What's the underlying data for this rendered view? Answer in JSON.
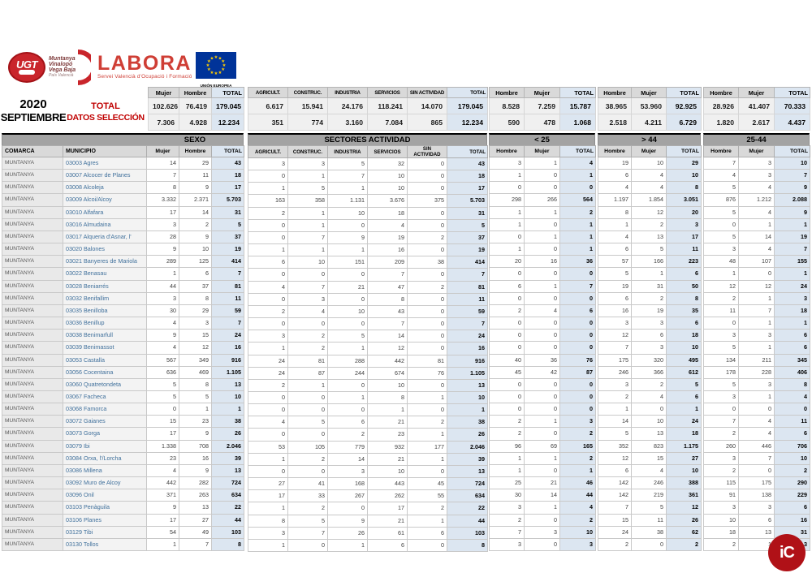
{
  "period": {
    "year": "2020",
    "month": "SEPTIEMBRE"
  },
  "selection": {
    "line1": "TOTAL",
    "line2": "DATOS SELECCIÓN"
  },
  "logos": {
    "ugt": {
      "acronym": "UGT",
      "region_lines": [
        "Muntanya",
        "Vinalopó",
        "Vega Baja"
      ],
      "sub": "País Valencià"
    },
    "labora": {
      "name": "LABORA",
      "subtitle": "Servei Valencià d'Ocupació i Formació"
    },
    "eu": {
      "line1": "UNIÓN EUROPEA",
      "line2": "Fondo Social Europeo"
    },
    "corner": {
      "text": "iC"
    }
  },
  "colors": {
    "accent_red": "#c00000",
    "labora_red": "#cf3e35",
    "eu_blue": "#003399",
    "eu_star_yellow": "#ffcc00",
    "band_gray": "#a3a3a3",
    "header_gray": "#d9d9d9",
    "total_col_blue": "#dce6f1",
    "municipio_blue": "#41719c",
    "corner_red": "#b01117"
  },
  "summary": {
    "sexo": {
      "headers": [
        "Mujer",
        "Hombre",
        "TOTAL"
      ],
      "rows": [
        [
          "102.626",
          "76.419",
          "179.045"
        ],
        [
          "7.306",
          "4.928",
          "12.234"
        ]
      ]
    },
    "sectores": {
      "headers": [
        "AGRICULT.",
        "CONSTRUC.",
        "INDUSTRIA",
        "SERVICIOS",
        "SIN ACTIVIDAD",
        "TOTAL"
      ],
      "rows": [
        [
          "6.617",
          "15.941",
          "24.176",
          "118.241",
          "14.070",
          "179.045"
        ],
        [
          "351",
          "774",
          "3.160",
          "7.084",
          "865",
          "12.234"
        ]
      ]
    },
    "age_groups": [
      {
        "headers": [
          "Hombre",
          "Mujer",
          "TOTAL"
        ],
        "rows": [
          [
            "8.528",
            "7.259",
            "15.787"
          ],
          [
            "590",
            "478",
            "1.068"
          ]
        ]
      },
      {
        "headers": [
          "Hombre",
          "Mujer",
          "TOTAL"
        ],
        "rows": [
          [
            "38.965",
            "53.960",
            "92.925"
          ],
          [
            "2.518",
            "4.211",
            "6.729"
          ]
        ]
      },
      {
        "headers": [
          "Hombre",
          "Mujer",
          "TOTAL"
        ],
        "rows": [
          [
            "28.926",
            "41.407",
            "70.333"
          ],
          [
            "1.820",
            "2.617",
            "4.437"
          ]
        ]
      }
    ]
  },
  "table": {
    "band": {
      "left": "SEXO",
      "sectores": "SECTORES ACTIVIDAD",
      "age": [
        "< 25",
        "> 44",
        "25-44"
      ]
    },
    "headers": {
      "comarca": "COMARCA",
      "municipio": "MUNICIPIO",
      "sexo": [
        "Mujer",
        "Hombre",
        "TOTAL"
      ],
      "sectores": [
        "AGRICULT.",
        "CONSTRUC.",
        "INDUSTRIA",
        "SERVICIOS",
        "SIN ACTIVIDAD",
        "TOTAL"
      ],
      "lt25": [
        "Hombre",
        "Mujer",
        "TOTAL"
      ],
      "gt44": [
        "Hombre",
        "Mujer",
        "TOTAL"
      ],
      "mid": [
        "Hombre",
        "Mujer",
        "TOTAL"
      ]
    },
    "rows": [
      {
        "comarca": "MUNTANYA",
        "municipio": "03003 Agres",
        "sexo": [
          "14",
          "29",
          "43"
        ],
        "sectores": [
          "3",
          "3",
          "5",
          "32",
          "0",
          "43"
        ],
        "lt25": [
          "3",
          "1",
          "4"
        ],
        "gt44": [
          "19",
          "10",
          "29"
        ],
        "mid": [
          "7",
          "3",
          "10"
        ]
      },
      {
        "comarca": "MUNTANYA",
        "municipio": "03007 Alcocer de Planes",
        "sexo": [
          "7",
          "11",
          "18"
        ],
        "sectores": [
          "0",
          "1",
          "7",
          "10",
          "0",
          "18"
        ],
        "lt25": [
          "1",
          "0",
          "1"
        ],
        "gt44": [
          "6",
          "4",
          "10"
        ],
        "mid": [
          "4",
          "3",
          "7"
        ]
      },
      {
        "comarca": "MUNTANYA",
        "municipio": "03008 Alcoleja",
        "sexo": [
          "8",
          "9",
          "17"
        ],
        "sectores": [
          "1",
          "5",
          "1",
          "10",
          "0",
          "17"
        ],
        "lt25": [
          "0",
          "0",
          "0"
        ],
        "gt44": [
          "4",
          "4",
          "8"
        ],
        "mid": [
          "5",
          "4",
          "9"
        ]
      },
      {
        "comarca": "MUNTANYA",
        "municipio": "03009 Alcoi/Alcoy",
        "sexo": [
          "3.332",
          "2.371",
          "5.703"
        ],
        "sectores": [
          "163",
          "358",
          "1.131",
          "3.676",
          "375",
          "5.703"
        ],
        "lt25": [
          "298",
          "266",
          "564"
        ],
        "gt44": [
          "1.197",
          "1.854",
          "3.051"
        ],
        "mid": [
          "876",
          "1.212",
          "2.088"
        ]
      },
      {
        "comarca": "MUNTANYA",
        "municipio": "03010 Alfafara",
        "sexo": [
          "17",
          "14",
          "31"
        ],
        "sectores": [
          "2",
          "1",
          "10",
          "18",
          "0",
          "31"
        ],
        "lt25": [
          "1",
          "1",
          "2"
        ],
        "gt44": [
          "8",
          "12",
          "20"
        ],
        "mid": [
          "5",
          "4",
          "9"
        ]
      },
      {
        "comarca": "MUNTANYA",
        "municipio": "03016 Almudaina",
        "sexo": [
          "3",
          "2",
          "5"
        ],
        "sectores": [
          "0",
          "1",
          "0",
          "4",
          "0",
          "5"
        ],
        "lt25": [
          "1",
          "0",
          "1"
        ],
        "gt44": [
          "1",
          "2",
          "3"
        ],
        "mid": [
          "0",
          "1",
          "1"
        ]
      },
      {
        "comarca": "MUNTANYA",
        "municipio": "03017 Alqueria d'Asnar, l'",
        "sexo": [
          "28",
          "9",
          "37"
        ],
        "sectores": [
          "0",
          "7",
          "9",
          "19",
          "2",
          "37"
        ],
        "lt25": [
          "0",
          "1",
          "1"
        ],
        "gt44": [
          "4",
          "13",
          "17"
        ],
        "mid": [
          "5",
          "14",
          "19"
        ]
      },
      {
        "comarca": "MUNTANYA",
        "municipio": "03020 Balones",
        "sexo": [
          "9",
          "10",
          "19"
        ],
        "sectores": [
          "1",
          "1",
          "1",
          "16",
          "0",
          "19"
        ],
        "lt25": [
          "1",
          "0",
          "1"
        ],
        "gt44": [
          "6",
          "5",
          "11"
        ],
        "mid": [
          "3",
          "4",
          "7"
        ]
      },
      {
        "comarca": "MUNTANYA",
        "municipio": "03021 Banyeres de Mariola",
        "sexo": [
          "289",
          "125",
          "414"
        ],
        "sectores": [
          "6",
          "10",
          "151",
          "209",
          "38",
          "414"
        ],
        "lt25": [
          "20",
          "16",
          "36"
        ],
        "gt44": [
          "57",
          "166",
          "223"
        ],
        "mid": [
          "48",
          "107",
          "155"
        ]
      },
      {
        "comarca": "MUNTANYA",
        "municipio": "03022 Benasau",
        "sexo": [
          "1",
          "6",
          "7"
        ],
        "sectores": [
          "0",
          "0",
          "0",
          "7",
          "0",
          "7"
        ],
        "lt25": [
          "0",
          "0",
          "0"
        ],
        "gt44": [
          "5",
          "1",
          "6"
        ],
        "mid": [
          "1",
          "0",
          "1"
        ]
      },
      {
        "comarca": "MUNTANYA",
        "municipio": "03028 Beniarrés",
        "sexo": [
          "44",
          "37",
          "81"
        ],
        "sectores": [
          "4",
          "7",
          "21",
          "47",
          "2",
          "81"
        ],
        "lt25": [
          "6",
          "1",
          "7"
        ],
        "gt44": [
          "19",
          "31",
          "50"
        ],
        "mid": [
          "12",
          "12",
          "24"
        ]
      },
      {
        "comarca": "MUNTANYA",
        "municipio": "03032 Benifallim",
        "sexo": [
          "3",
          "8",
          "11"
        ],
        "sectores": [
          "0",
          "3",
          "0",
          "8",
          "0",
          "11"
        ],
        "lt25": [
          "0",
          "0",
          "0"
        ],
        "gt44": [
          "6",
          "2",
          "8"
        ],
        "mid": [
          "2",
          "1",
          "3"
        ]
      },
      {
        "comarca": "MUNTANYA",
        "municipio": "03035 Benilloba",
        "sexo": [
          "30",
          "29",
          "59"
        ],
        "sectores": [
          "2",
          "4",
          "10",
          "43",
          "0",
          "59"
        ],
        "lt25": [
          "2",
          "4",
          "6"
        ],
        "gt44": [
          "16",
          "19",
          "35"
        ],
        "mid": [
          "11",
          "7",
          "18"
        ]
      },
      {
        "comarca": "MUNTANYA",
        "municipio": "03036 Benillup",
        "sexo": [
          "4",
          "3",
          "7"
        ],
        "sectores": [
          "0",
          "0",
          "0",
          "7",
          "0",
          "7"
        ],
        "lt25": [
          "0",
          "0",
          "0"
        ],
        "gt44": [
          "3",
          "3",
          "6"
        ],
        "mid": [
          "0",
          "1",
          "1"
        ]
      },
      {
        "comarca": "MUNTANYA",
        "municipio": "03038 Benimarfull",
        "sexo": [
          "9",
          "15",
          "24"
        ],
        "sectores": [
          "3",
          "2",
          "5",
          "14",
          "0",
          "24"
        ],
        "lt25": [
          "0",
          "0",
          "0"
        ],
        "gt44": [
          "12",
          "6",
          "18"
        ],
        "mid": [
          "3",
          "3",
          "6"
        ]
      },
      {
        "comarca": "MUNTANYA",
        "municipio": "03039 Benimassot",
        "sexo": [
          "4",
          "12",
          "16"
        ],
        "sectores": [
          "1",
          "2",
          "1",
          "12",
          "0",
          "16"
        ],
        "lt25": [
          "0",
          "0",
          "0"
        ],
        "gt44": [
          "7",
          "3",
          "10"
        ],
        "mid": [
          "5",
          "1",
          "6"
        ]
      },
      {
        "comarca": "MUNTANYA",
        "municipio": "03053 Castalla",
        "sexo": [
          "567",
          "349",
          "916"
        ],
        "sectores": [
          "24",
          "81",
          "288",
          "442",
          "81",
          "916"
        ],
        "lt25": [
          "40",
          "36",
          "76"
        ],
        "gt44": [
          "175",
          "320",
          "495"
        ],
        "mid": [
          "134",
          "211",
          "345"
        ]
      },
      {
        "comarca": "MUNTANYA",
        "municipio": "03056 Cocentaina",
        "sexo": [
          "636",
          "469",
          "1.105"
        ],
        "sectores": [
          "24",
          "87",
          "244",
          "674",
          "76",
          "1.105"
        ],
        "lt25": [
          "45",
          "42",
          "87"
        ],
        "gt44": [
          "246",
          "366",
          "612"
        ],
        "mid": [
          "178",
          "228",
          "406"
        ]
      },
      {
        "comarca": "MUNTANYA",
        "municipio": "03060 Quatretondeta",
        "sexo": [
          "5",
          "8",
          "13"
        ],
        "sectores": [
          "2",
          "1",
          "0",
          "10",
          "0",
          "13"
        ],
        "lt25": [
          "0",
          "0",
          "0"
        ],
        "gt44": [
          "3",
          "2",
          "5"
        ],
        "mid": [
          "5",
          "3",
          "8"
        ]
      },
      {
        "comarca": "MUNTANYA",
        "municipio": "03067 Facheca",
        "sexo": [
          "5",
          "5",
          "10"
        ],
        "sectores": [
          "0",
          "0",
          "1",
          "8",
          "1",
          "10"
        ],
        "lt25": [
          "0",
          "0",
          "0"
        ],
        "gt44": [
          "2",
          "4",
          "6"
        ],
        "mid": [
          "3",
          "1",
          "4"
        ]
      },
      {
        "comarca": "MUNTANYA",
        "municipio": "03068 Famorca",
        "sexo": [
          "0",
          "1",
          "1"
        ],
        "sectores": [
          "0",
          "0",
          "0",
          "1",
          "0",
          "1"
        ],
        "lt25": [
          "0",
          "0",
          "0"
        ],
        "gt44": [
          "1",
          "0",
          "1"
        ],
        "mid": [
          "0",
          "0",
          "0"
        ]
      },
      {
        "comarca": "MUNTANYA",
        "municipio": "03072 Gaianes",
        "sexo": [
          "15",
          "23",
          "38"
        ],
        "sectores": [
          "4",
          "5",
          "6",
          "21",
          "2",
          "38"
        ],
        "lt25": [
          "2",
          "1",
          "3"
        ],
        "gt44": [
          "14",
          "10",
          "24"
        ],
        "mid": [
          "7",
          "4",
          "11"
        ]
      },
      {
        "comarca": "MUNTANYA",
        "municipio": "03073 Gorga",
        "sexo": [
          "17",
          "9",
          "26"
        ],
        "sectores": [
          "0",
          "0",
          "2",
          "23",
          "1",
          "26"
        ],
        "lt25": [
          "2",
          "0",
          "2"
        ],
        "gt44": [
          "5",
          "13",
          "18"
        ],
        "mid": [
          "2",
          "4",
          "6"
        ]
      },
      {
        "comarca": "MUNTANYA",
        "municipio": "03079 Ibi",
        "sexo": [
          "1.338",
          "708",
          "2.046"
        ],
        "sectores": [
          "53",
          "105",
          "779",
          "932",
          "177",
          "2.046"
        ],
        "lt25": [
          "96",
          "69",
          "165"
        ],
        "gt44": [
          "352",
          "823",
          "1.175"
        ],
        "mid": [
          "260",
          "446",
          "706"
        ]
      },
      {
        "comarca": "MUNTANYA",
        "municipio": "03084 Orxa, l'/Lorcha",
        "sexo": [
          "23",
          "16",
          "39"
        ],
        "sectores": [
          "1",
          "2",
          "14",
          "21",
          "1",
          "39"
        ],
        "lt25": [
          "1",
          "1",
          "2"
        ],
        "gt44": [
          "12",
          "15",
          "27"
        ],
        "mid": [
          "3",
          "7",
          "10"
        ]
      },
      {
        "comarca": "MUNTANYA",
        "municipio": "03086 Millena",
        "sexo": [
          "4",
          "9",
          "13"
        ],
        "sectores": [
          "0",
          "0",
          "3",
          "10",
          "0",
          "13"
        ],
        "lt25": [
          "1",
          "0",
          "1"
        ],
        "gt44": [
          "6",
          "4",
          "10"
        ],
        "mid": [
          "2",
          "0",
          "2"
        ]
      },
      {
        "comarca": "MUNTANYA",
        "municipio": "03092 Muro de Alcoy",
        "sexo": [
          "442",
          "282",
          "724"
        ],
        "sectores": [
          "27",
          "41",
          "168",
          "443",
          "45",
          "724"
        ],
        "lt25": [
          "25",
          "21",
          "46"
        ],
        "gt44": [
          "142",
          "246",
          "388"
        ],
        "mid": [
          "115",
          "175",
          "290"
        ]
      },
      {
        "comarca": "MUNTANYA",
        "municipio": "03096 Onil",
        "sexo": [
          "371",
          "263",
          "634"
        ],
        "sectores": [
          "17",
          "33",
          "267",
          "262",
          "55",
          "634"
        ],
        "lt25": [
          "30",
          "14",
          "44"
        ],
        "gt44": [
          "142",
          "219",
          "361"
        ],
        "mid": [
          "91",
          "138",
          "229"
        ]
      },
      {
        "comarca": "MUNTANYA",
        "municipio": "03103 Penàguila",
        "sexo": [
          "9",
          "13",
          "22"
        ],
        "sectores": [
          "1",
          "2",
          "0",
          "17",
          "2",
          "22"
        ],
        "lt25": [
          "3",
          "1",
          "4"
        ],
        "gt44": [
          "7",
          "5",
          "12"
        ],
        "mid": [
          "3",
          "3",
          "6"
        ]
      },
      {
        "comarca": "MUNTANYA",
        "municipio": "03106 Planes",
        "sexo": [
          "17",
          "27",
          "44"
        ],
        "sectores": [
          "8",
          "5",
          "9",
          "21",
          "1",
          "44"
        ],
        "lt25": [
          "2",
          "0",
          "2"
        ],
        "gt44": [
          "15",
          "11",
          "26"
        ],
        "mid": [
          "10",
          "6",
          "16"
        ]
      },
      {
        "comarca": "MUNTANYA",
        "municipio": "03129 Tibi",
        "sexo": [
          "54",
          "49",
          "103"
        ],
        "sectores": [
          "3",
          "7",
          "26",
          "61",
          "6",
          "103"
        ],
        "lt25": [
          "7",
          "3",
          "10"
        ],
        "gt44": [
          "24",
          "38",
          "62"
        ],
        "mid": [
          "18",
          "13",
          "31"
        ]
      },
      {
        "comarca": "MUNTANYA",
        "municipio": "03130 Tollos",
        "sexo": [
          "1",
          "7",
          "8"
        ],
        "sectores": [
          "1",
          "0",
          "1",
          "6",
          "0",
          "8"
        ],
        "lt25": [
          "3",
          "0",
          "3"
        ],
        "gt44": [
          "2",
          "0",
          "2"
        ],
        "mid": [
          "2",
          "1",
          "3"
        ]
      }
    ]
  }
}
